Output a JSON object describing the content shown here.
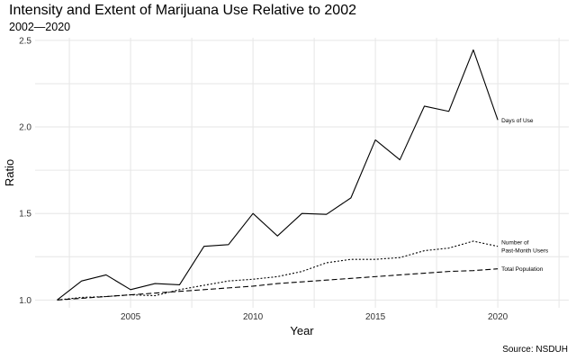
{
  "chart_data": {
    "type": "line",
    "title": "Intensity and Extent of Marijuana Use Relative to 2002",
    "subtitle": "2002—2020",
    "xlabel": "Year",
    "ylabel": "Ratio",
    "caption": "Source: NSDUH",
    "xlim": [
      2001.1,
      2022.9
    ],
    "ylim": [
      0.955,
      2.515
    ],
    "x_ticks": [
      2005,
      2010,
      2015,
      2020
    ],
    "y_ticks": [
      1.0,
      1.5,
      2.0,
      2.5
    ],
    "y_tick_labels": [
      "1.0",
      "1.5",
      "2.0",
      "2.5"
    ],
    "grid": true,
    "legend": "direct labels at line ends",
    "x": [
      2002,
      2003,
      2004,
      2005,
      2006,
      2007,
      2008,
      2009,
      2010,
      2011,
      2012,
      2013,
      2014,
      2015,
      2016,
      2017,
      2018,
      2019,
      2020
    ],
    "series": [
      {
        "name": "Days of Use",
        "label_lines": [
          "Days of Use"
        ],
        "dash": "solid",
        "values": [
          1.0,
          1.11,
          1.145,
          1.06,
          1.095,
          1.088,
          1.31,
          1.32,
          1.5,
          1.37,
          1.5,
          1.495,
          1.59,
          1.925,
          1.81,
          2.12,
          2.09,
          2.445,
          2.04
        ]
      },
      {
        "name": "Number of Past-Month Users",
        "label_lines": [
          "Number of",
          "Past-Month Users"
        ],
        "dash": "dotted",
        "values": [
          1.0,
          1.015,
          1.02,
          1.03,
          1.025,
          1.06,
          1.085,
          1.11,
          1.12,
          1.135,
          1.165,
          1.215,
          1.235,
          1.235,
          1.245,
          1.285,
          1.3,
          1.34,
          1.31
        ]
      },
      {
        "name": "Total Population",
        "label_lines": [
          "Total Population"
        ],
        "dash": "dashed",
        "values": [
          1.0,
          1.01,
          1.02,
          1.03,
          1.04,
          1.05,
          1.06,
          1.07,
          1.08,
          1.095,
          1.105,
          1.115,
          1.125,
          1.135,
          1.145,
          1.155,
          1.165,
          1.17,
          1.18
        ]
      }
    ]
  }
}
